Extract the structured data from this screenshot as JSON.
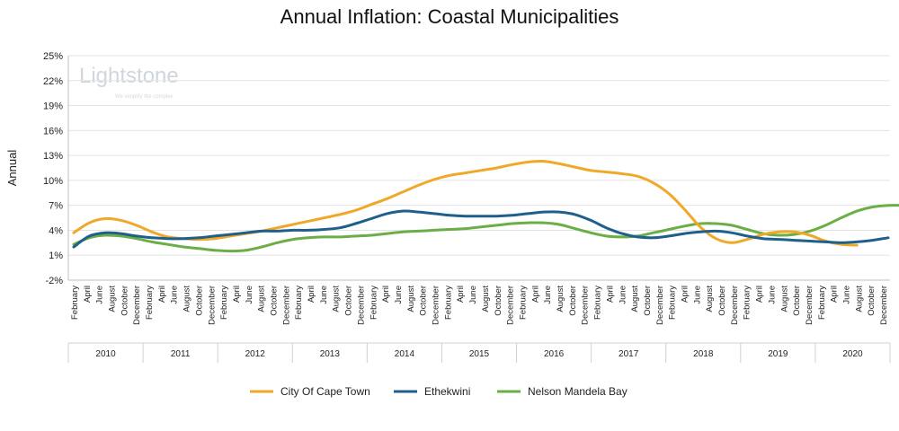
{
  "chart_data": {
    "type": "line",
    "title": "Annual Inflation: Coastal Municipalities",
    "ylabel": "Annual",
    "xlabel": "",
    "ylim": [
      -2,
      25
    ],
    "yticks": [
      "25%",
      "22%",
      "19%",
      "16%",
      "13%",
      "10%",
      "7%",
      "4%",
      "1%",
      "-2%"
    ],
    "ytick_values": [
      25,
      22,
      19,
      16,
      13,
      10,
      7,
      4,
      1,
      -2
    ],
    "month_labels": [
      "February",
      "April",
      "June",
      "August",
      "October",
      "December"
    ],
    "years": [
      "2010",
      "2011",
      "2012",
      "2013",
      "2014",
      "2015",
      "2016",
      "2017",
      "2018",
      "2019",
      "2020"
    ],
    "grid": true,
    "legend_position": "bottom",
    "watermark": {
      "name": "Lightstone",
      "tagline": "We simplify the complex"
    },
    "series": [
      {
        "name": "City Of Cape Town",
        "color": "#F0A829",
        "values": [
          3.7,
          4.9,
          5.4,
          5.2,
          4.6,
          3.8,
          3.2,
          3.0,
          2.9,
          3.0,
          3.3,
          3.6,
          3.9,
          4.3,
          4.7,
          5.1,
          5.5,
          5.9,
          6.4,
          7.1,
          7.8,
          8.6,
          9.4,
          10.1,
          10.6,
          10.9,
          11.2,
          11.5,
          11.9,
          12.2,
          12.3,
          12.0,
          11.6,
          11.2,
          11.0,
          10.8,
          10.5,
          9.7,
          8.4,
          6.5,
          4.4,
          3.0,
          2.5,
          2.9,
          3.5,
          3.8,
          3.8,
          3.4,
          2.7,
          2.3,
          2.2
        ]
      },
      {
        "name": "Ethekwini",
        "color": "#1F5F8B",
        "values": [
          2.0,
          3.3,
          3.7,
          3.6,
          3.3,
          3.1,
          3.0,
          3.0,
          3.1,
          3.3,
          3.5,
          3.7,
          3.9,
          3.9,
          4.0,
          4.0,
          4.1,
          4.3,
          4.8,
          5.4,
          6.0,
          6.3,
          6.2,
          6.0,
          5.8,
          5.7,
          5.7,
          5.7,
          5.8,
          6.0,
          6.2,
          6.2,
          5.9,
          5.2,
          4.3,
          3.6,
          3.2,
          3.1,
          3.3,
          3.6,
          3.8,
          3.9,
          3.7,
          3.3,
          3.0,
          2.9,
          2.8,
          2.7,
          2.6,
          2.5,
          2.6,
          2.8,
          3.1
        ]
      },
      {
        "name": "Nelson Mandela Bay",
        "color": "#6AAE45",
        "values": [
          2.3,
          3.1,
          3.4,
          3.3,
          3.0,
          2.6,
          2.3,
          2.0,
          1.8,
          1.6,
          1.5,
          1.6,
          2.0,
          2.5,
          2.9,
          3.1,
          3.2,
          3.2,
          3.3,
          3.4,
          3.6,
          3.8,
          3.9,
          4.0,
          4.1,
          4.2,
          4.4,
          4.6,
          4.8,
          4.9,
          4.9,
          4.7,
          4.2,
          3.7,
          3.3,
          3.2,
          3.3,
          3.7,
          4.1,
          4.5,
          4.8,
          4.8,
          4.6,
          4.1,
          3.6,
          3.4,
          3.5,
          3.9,
          4.6,
          5.5,
          6.3,
          6.8,
          7.0,
          7.0
        ]
      }
    ]
  }
}
